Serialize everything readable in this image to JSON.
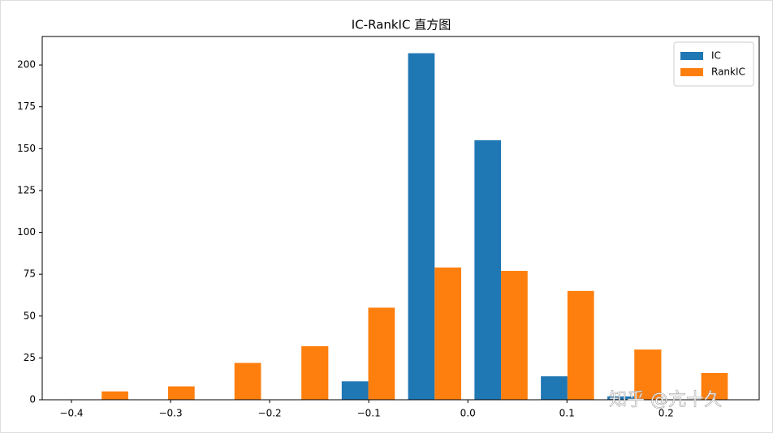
{
  "chart_data": {
    "type": "histogram",
    "title": "IC-RankIC 直方图",
    "bins": [
      -0.403,
      -0.336,
      -0.269,
      -0.202,
      -0.134,
      -0.067,
      0.0,
      0.067,
      0.134,
      0.202,
      0.269
    ],
    "series": [
      {
        "name": "IC",
        "color": "#1f77b4",
        "values": [
          0,
          0,
          0,
          0,
          11,
          207,
          155,
          14,
          2,
          0
        ]
      },
      {
        "name": "RankIC",
        "color": "#ff7f0e",
        "values": [
          5,
          8,
          22,
          32,
          55,
          79,
          77,
          65,
          30,
          16
        ]
      }
    ],
    "xlim": [
      -0.4295,
      0.294
    ],
    "xticks": [
      {
        "value": -0.4,
        "label": "−0.4"
      },
      {
        "value": -0.3,
        "label": "−0.3"
      },
      {
        "value": -0.2,
        "label": "−0.2"
      },
      {
        "value": -0.1,
        "label": "−0.1"
      },
      {
        "value": 0,
        "label": "0.0"
      },
      0.1,
      0.2
    ],
    "ylim": [
      0,
      217
    ],
    "yticks": [
      0,
      25,
      50,
      75,
      100,
      125,
      150,
      175,
      200
    ],
    "legend": "upper right",
    "watermark": "知乎 @亢十久"
  }
}
